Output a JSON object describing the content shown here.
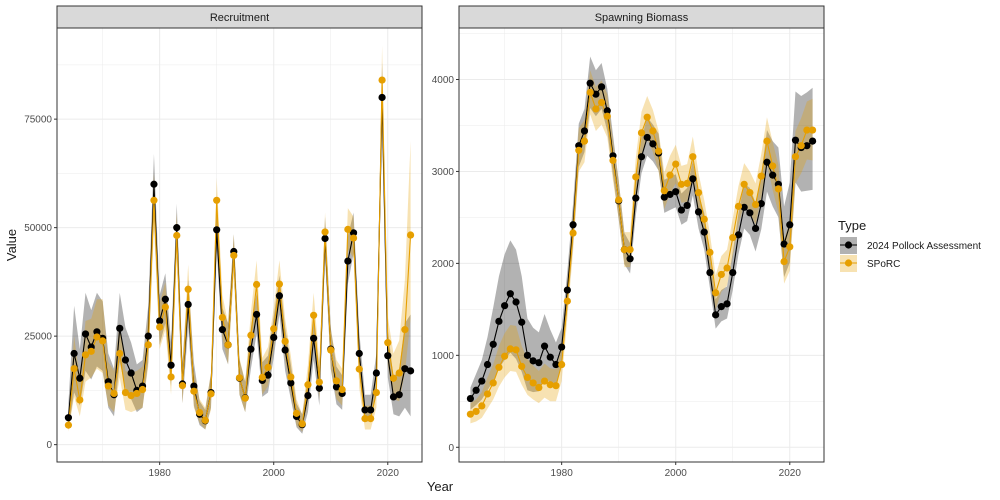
{
  "figure": {
    "xlabel": "Year",
    "ylabel": "Value",
    "legend_title": "Type",
    "legend_placement": "right"
  },
  "colors": {
    "pollock": "#000000",
    "sporc": "#E69F00",
    "strip_fill": "#D9D9D9",
    "grid": "#EBEBEB"
  },
  "legend": [
    {
      "name": "2024 Pollock Assessment",
      "color": "#000000"
    },
    {
      "name": "SPoRC",
      "color": "#E69F00"
    }
  ],
  "chart_data": [
    {
      "type": "line",
      "title": "Recruitment",
      "xlim": [
        1962,
        2026
      ],
      "ylim": [
        -4000,
        96000
      ],
      "xticks": [
        1980,
        2000,
        2020
      ],
      "yticks": [
        0,
        25000,
        50000,
        75000
      ],
      "ytick_labels": [
        "0",
        "25000",
        "50000",
        "75000"
      ],
      "x": [
        1964,
        1965,
        1966,
        1967,
        1968,
        1969,
        1970,
        1971,
        1972,
        1973,
        1974,
        1975,
        1976,
        1977,
        1978,
        1979,
        1980,
        1981,
        1982,
        1983,
        1984,
        1985,
        1986,
        1987,
        1988,
        1989,
        1990,
        1991,
        1992,
        1993,
        1994,
        1995,
        1996,
        1997,
        1998,
        1999,
        2000,
        2001,
        2002,
        2003,
        2004,
        2005,
        2006,
        2007,
        2008,
        2009,
        2010,
        2011,
        2012,
        2013,
        2014,
        2015,
        2016,
        2017,
        2018,
        2019,
        2020,
        2021,
        2022,
        2023,
        2024
      ],
      "series": [
        {
          "name": "2024 Pollock Assessment",
          "values": [
            6200,
            21000,
            15300,
            25500,
            22500,
            26000,
            24500,
            14500,
            11500,
            26800,
            19500,
            16500,
            12500,
            13500,
            25000,
            60000,
            28500,
            33500,
            18300,
            50000,
            14000,
            32300,
            13500,
            7000,
            5500,
            12000,
            49500,
            26500,
            23000,
            44500,
            15300,
            10800,
            22000,
            30000,
            14800,
            16000,
            24700,
            34300,
            21800,
            14200,
            6500,
            4600,
            11300,
            24500,
            13000,
            47500,
            22000,
            13300,
            11800,
            42300,
            48800,
            21000,
            8000,
            8000,
            16500,
            80000,
            20500,
            11000,
            11500,
            17500,
            17000
          ],
          "lower": [
            3500,
            12000,
            9000,
            17000,
            15000,
            18000,
            17000,
            8500,
            6500,
            19000,
            13000,
            10500,
            7500,
            8500,
            19000,
            53000,
            23000,
            28000,
            13500,
            45000,
            9500,
            27000,
            9000,
            4500,
            3500,
            8500,
            45000,
            22000,
            18500,
            41000,
            11500,
            7500,
            17500,
            25500,
            11000,
            12000,
            20000,
            30000,
            17000,
            10500,
            4000,
            2500,
            7500,
            19500,
            9000,
            43000,
            17500,
            9300,
            8000,
            37000,
            44000,
            16500,
            5200,
            5500,
            12500,
            72000,
            15500,
            7000,
            6500,
            8500,
            6500
          ],
          "upper": [
            9500,
            32000,
            22000,
            35000,
            31000,
            35000,
            33000,
            21000,
            17500,
            35000,
            27000,
            23500,
            18500,
            19500,
            32000,
            67000,
            34500,
            39500,
            23500,
            55500,
            19000,
            38000,
            19000,
            10000,
            8000,
            16500,
            54500,
            31500,
            28000,
            48500,
            19500,
            14500,
            27000,
            35000,
            19000,
            20500,
            29500,
            39000,
            27000,
            18500,
            9500,
            7000,
            15500,
            30000,
            17500,
            52500,
            27000,
            18000,
            16000,
            48000,
            53500,
            26000,
            11500,
            11500,
            21000,
            88000,
            26500,
            15500,
            17500,
            28000,
            30000
          ]
        },
        {
          "name": "SPoRC",
          "values": [
            4500,
            17500,
            10300,
            20700,
            21500,
            24800,
            23900,
            13500,
            11800,
            21000,
            12000,
            11300,
            11800,
            12700,
            23000,
            56300,
            27100,
            31700,
            15600,
            48200,
            13600,
            35800,
            12300,
            7400,
            5600,
            11700,
            56300,
            29300,
            23000,
            43600,
            15400,
            10700,
            25200,
            36900,
            15500,
            17800,
            26700,
            37000,
            23800,
            15600,
            7200,
            4800,
            13800,
            29800,
            14400,
            49000,
            21800,
            14700,
            12700,
            49600,
            47600,
            17400,
            6000,
            6000,
            12000,
            84000,
            23500,
            15300,
            16500,
            26500,
            48300
          ],
          "lower": [
            3000,
            11000,
            6500,
            14500,
            15500,
            17500,
            16500,
            9000,
            7500,
            15500,
            8000,
            7500,
            8000,
            8500,
            18000,
            50000,
            22000,
            26500,
            11500,
            43000,
            9500,
            30500,
            8500,
            5000,
            3500,
            8000,
            51000,
            24500,
            18500,
            39000,
            11500,
            7500,
            20500,
            31500,
            11500,
            13500,
            22000,
            32000,
            19500,
            11500,
            4500,
            3000,
            10000,
            25000,
            10500,
            44500,
            17500,
            10500,
            9000,
            45000,
            43000,
            13000,
            3500,
            3500,
            8500,
            76000,
            18500,
            10500,
            10000,
            16500,
            29000
          ],
          "upper": [
            6500,
            25000,
            15000,
            28500,
            29000,
            33500,
            33500,
            19000,
            17000,
            28000,
            17000,
            16500,
            17000,
            18000,
            29500,
            62500,
            32500,
            37500,
            20500,
            53500,
            18500,
            41500,
            17000,
            10500,
            8500,
            16500,
            61500,
            34500,
            28000,
            48500,
            20000,
            14500,
            30500,
            42500,
            20000,
            22500,
            31500,
            42500,
            29000,
            20500,
            10500,
            7000,
            18500,
            35000,
            19000,
            53500,
            26500,
            19500,
            17500,
            54500,
            52500,
            22500,
            9000,
            9000,
            16500,
            92000,
            29500,
            21000,
            24000,
            38000,
            70000
          ]
        }
      ]
    },
    {
      "type": "line",
      "title": "Spawning Biomass",
      "xlim": [
        1962,
        2026
      ],
      "ylim": [
        -160,
        4560
      ],
      "xticks": [
        1980,
        2000,
        2020
      ],
      "yticks": [
        0,
        1000,
        2000,
        3000,
        4000
      ],
      "ytick_labels": [
        "0",
        "1000",
        "2000",
        "3000",
        "4000"
      ],
      "x": [
        1964,
        1965,
        1966,
        1967,
        1968,
        1969,
        1970,
        1971,
        1972,
        1973,
        1974,
        1975,
        1976,
        1977,
        1978,
        1979,
        1980,
        1981,
        1982,
        1983,
        1984,
        1985,
        1986,
        1987,
        1988,
        1989,
        1990,
        1991,
        1992,
        1993,
        1994,
        1995,
        1996,
        1997,
        1998,
        1999,
        2000,
        2001,
        2002,
        2003,
        2004,
        2005,
        2006,
        2007,
        2008,
        2009,
        2010,
        2011,
        2012,
        2013,
        2014,
        2015,
        2016,
        2017,
        2018,
        2019,
        2020,
        2021,
        2022,
        2023,
        2024
      ],
      "series": [
        {
          "name": "2024 Pollock Assessment",
          "values": [
            530,
            620,
            720,
            900,
            1120,
            1370,
            1540,
            1670,
            1580,
            1360,
            1000,
            940,
            920,
            1100,
            980,
            900,
            1090,
            1710,
            2420,
            3280,
            3440,
            3960,
            3840,
            3920,
            3660,
            3170,
            2680,
            2150,
            2050,
            2710,
            3160,
            3370,
            3300,
            3200,
            2720,
            2750,
            2780,
            2580,
            2630,
            2920,
            2560,
            2340,
            1900,
            1440,
            1530,
            1560,
            1900,
            2310,
            2610,
            2550,
            2380,
            2650,
            3100,
            2960,
            2860,
            2210,
            2420,
            3340,
            3260,
            3280,
            3330
          ],
          "lower": [
            410,
            460,
            520,
            620,
            720,
            860,
            950,
            1030,
            960,
            820,
            620,
            600,
            610,
            760,
            700,
            680,
            900,
            1510,
            2200,
            3050,
            3210,
            3690,
            3600,
            3680,
            3440,
            2960,
            2480,
            1990,
            1890,
            2520,
            2980,
            3170,
            3110,
            3010,
            2550,
            2580,
            2610,
            2420,
            2460,
            2740,
            2380,
            2150,
            1730,
            1290,
            1370,
            1400,
            1710,
            2100,
            2380,
            2310,
            2130,
            2370,
            2780,
            2620,
            2500,
            1850,
            2010,
            2880,
            2780,
            2790,
            2800
          ],
          "upper": [
            650,
            800,
            950,
            1200,
            1520,
            1860,
            2100,
            2250,
            2150,
            1860,
            1400,
            1300,
            1250,
            1450,
            1280,
            1140,
            1300,
            1920,
            2650,
            3520,
            3680,
            4250,
            4100,
            4180,
            3900,
            3400,
            2900,
            2330,
            2220,
            2920,
            3360,
            3590,
            3510,
            3410,
            2910,
            2940,
            2970,
            2760,
            2820,
            3120,
            2760,
            2550,
            2090,
            1610,
            1710,
            1750,
            2120,
            2550,
            2870,
            2820,
            2660,
            2960,
            3450,
            3330,
            3260,
            2620,
            2880,
            3870,
            3820,
            3860,
            3910
          ]
        },
        {
          "name": "SPoRC",
          "values": [
            360,
            390,
            450,
            580,
            700,
            870,
            990,
            1070,
            1060,
            880,
            760,
            700,
            650,
            720,
            680,
            670,
            900,
            1590,
            2330,
            3230,
            3330,
            3860,
            3680,
            3750,
            3600,
            3120,
            2690,
            2150,
            2150,
            2940,
            3420,
            3590,
            3440,
            3220,
            2790,
            2960,
            3080,
            2860,
            2870,
            3160,
            2770,
            2480,
            2120,
            1680,
            1880,
            1950,
            2280,
            2620,
            2860,
            2770,
            2640,
            2950,
            3330,
            3060,
            2810,
            2020,
            2180,
            3160,
            3280,
            3450,
            3450
          ],
          "lower": [
            260,
            280,
            320,
            420,
            520,
            660,
            760,
            830,
            820,
            680,
            570,
            520,
            480,
            540,
            500,
            500,
            720,
            1400,
            2130,
            3000,
            3100,
            3620,
            3440,
            3510,
            3370,
            2900,
            2480,
            1960,
            1960,
            2730,
            3190,
            3360,
            3210,
            3000,
            2590,
            2760,
            2870,
            2660,
            2670,
            2950,
            2570,
            2280,
            1930,
            1500,
            1690,
            1760,
            2080,
            2420,
            2640,
            2560,
            2420,
            2720,
            3080,
            2800,
            2550,
            1780,
            1920,
            2870,
            2980,
            3130,
            3120
          ],
          "upper": [
            480,
            520,
            600,
            760,
            900,
            1100,
            1240,
            1330,
            1320,
            1100,
            960,
            890,
            830,
            910,
            860,
            850,
            1090,
            1800,
            2540,
            3470,
            3560,
            4100,
            3920,
            3990,
            3840,
            3340,
            2900,
            2340,
            2340,
            3150,
            3650,
            3820,
            3670,
            3440,
            2990,
            3170,
            3290,
            3060,
            3080,
            3380,
            2980,
            2690,
            2320,
            1870,
            2080,
            2150,
            2490,
            2840,
            3090,
            3000,
            2870,
            3190,
            3590,
            3320,
            3070,
            2260,
            2450,
            3440,
            3580,
            3760,
            3790
          ]
        }
      ]
    }
  ]
}
